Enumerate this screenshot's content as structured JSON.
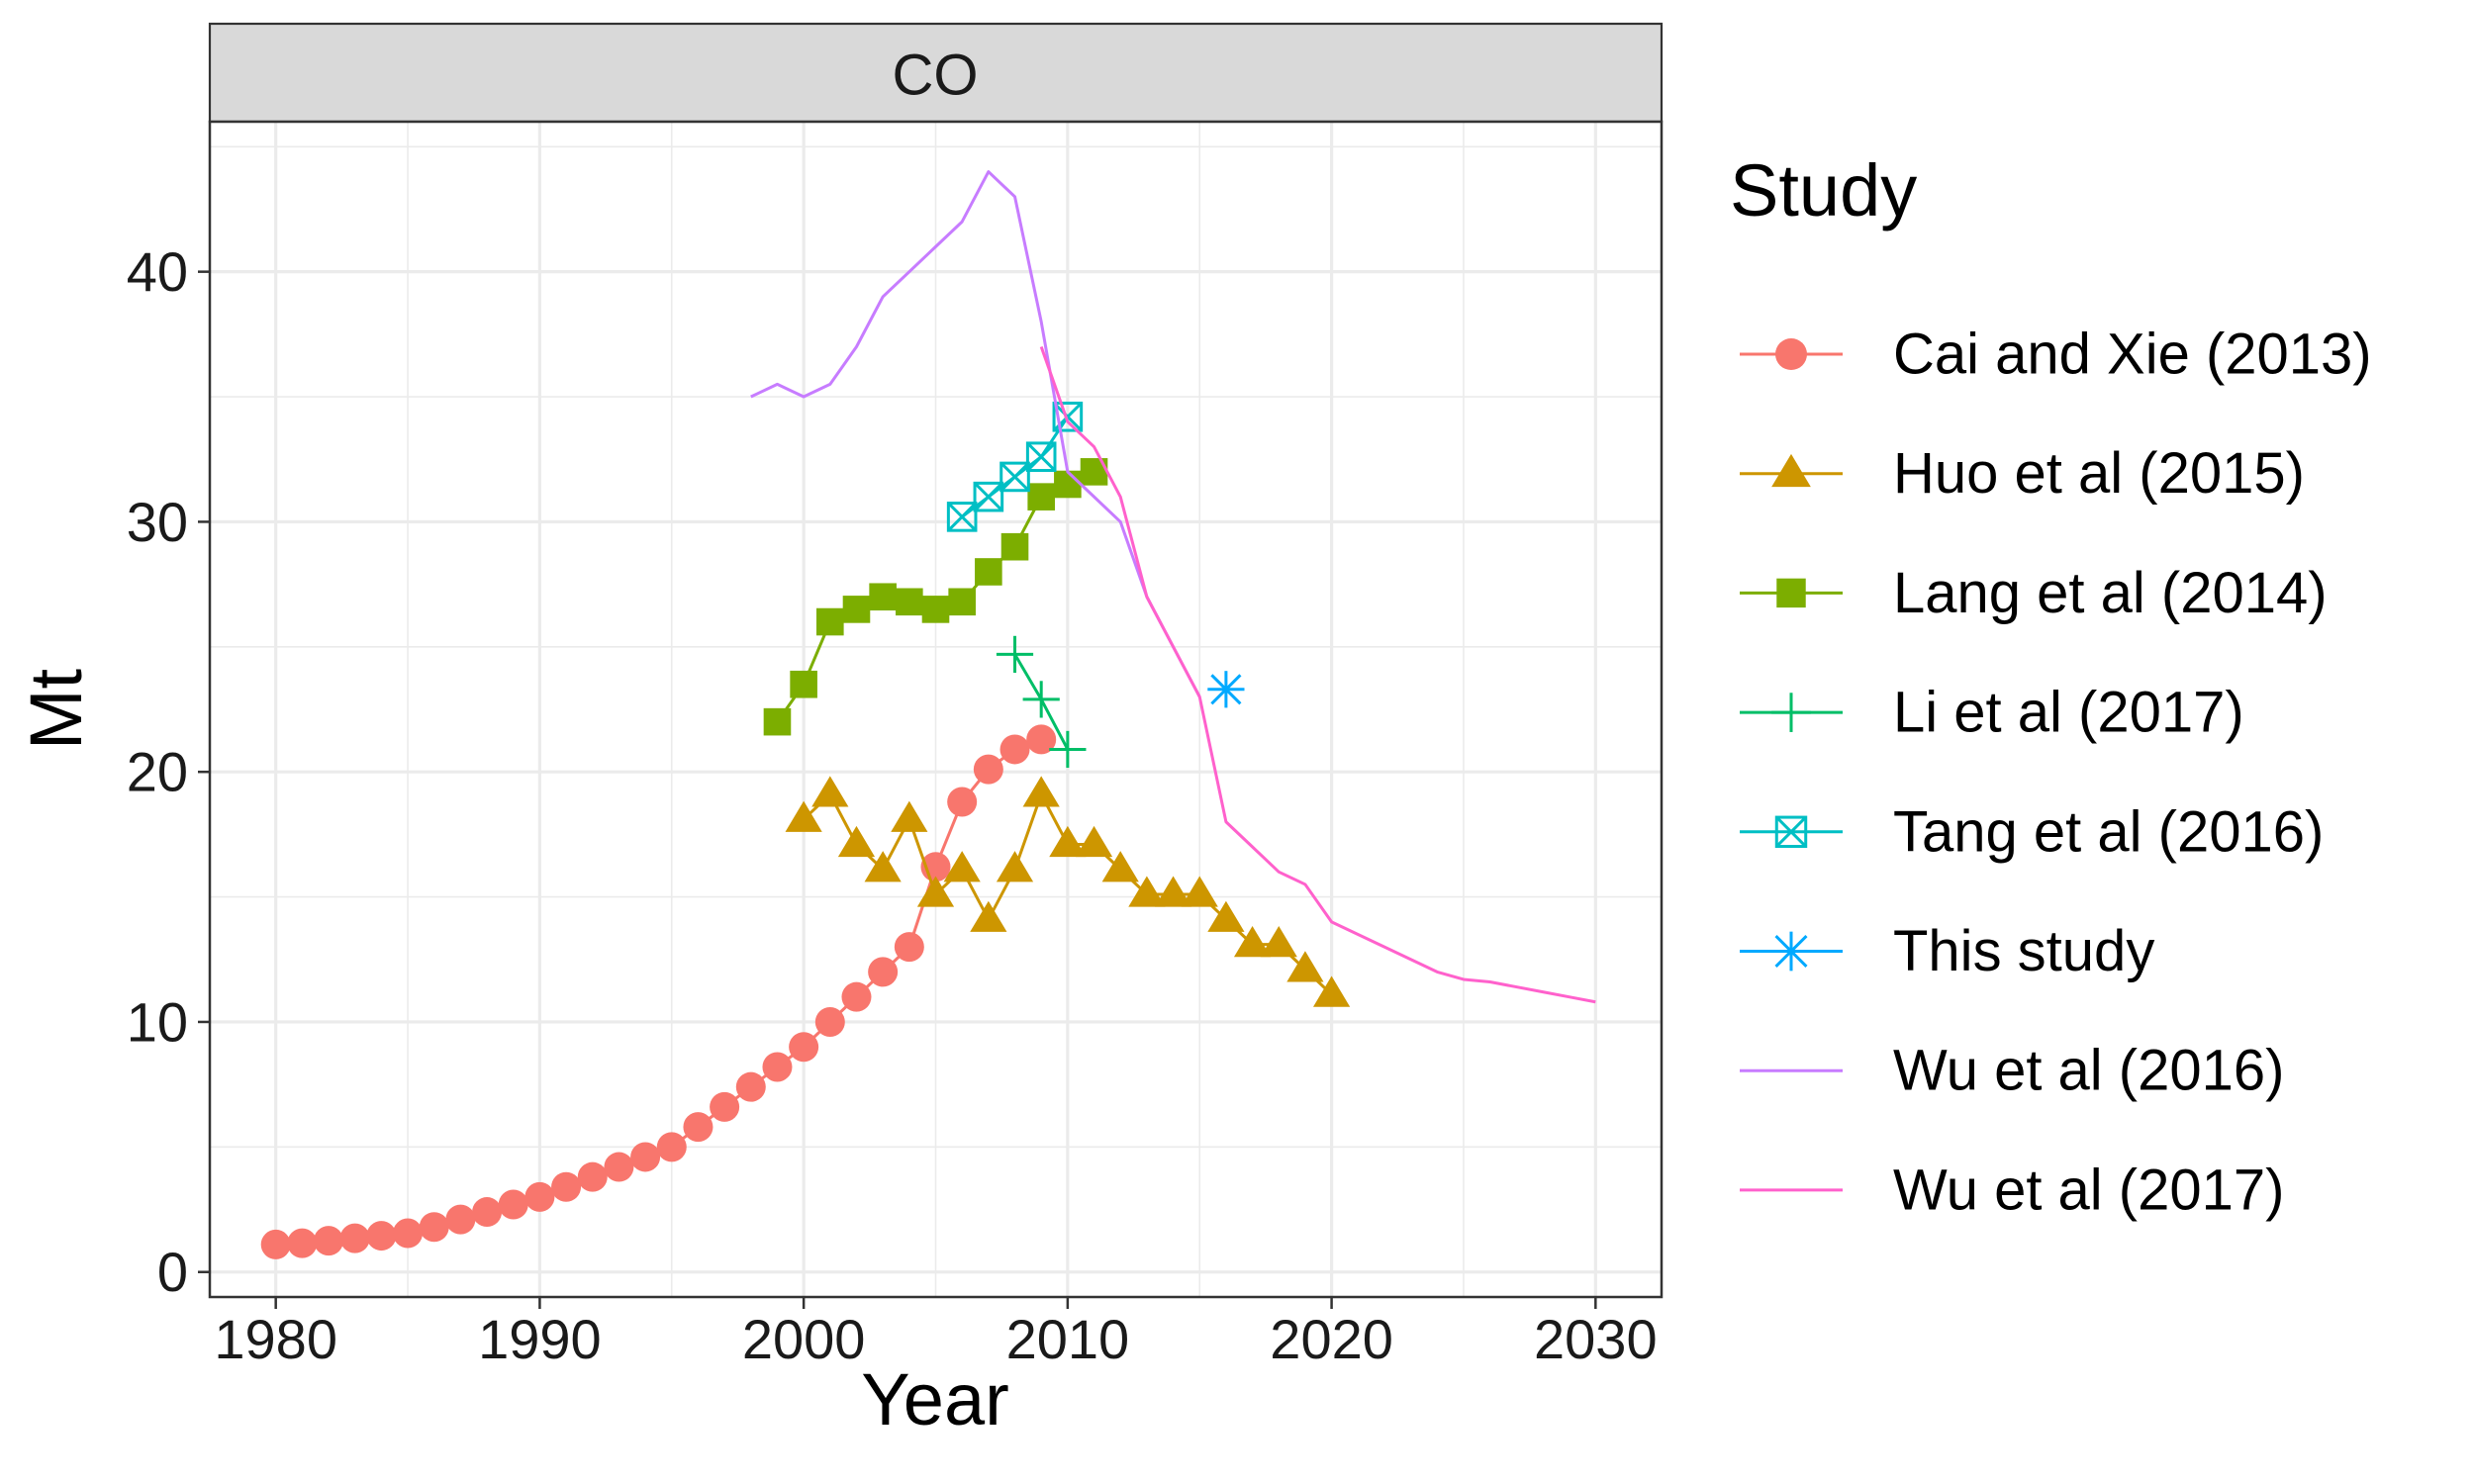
{
  "chart_data": {
    "type": "line",
    "facet_label": "CO",
    "xlabel": "Year",
    "ylabel": "Mt",
    "xlim": [
      1977.5,
      2032.5
    ],
    "ylim": [
      -1,
      46
    ],
    "x_ticks": [
      1980,
      1990,
      2000,
      2010,
      2020,
      2030
    ],
    "y_ticks": [
      0,
      10,
      20,
      30,
      40
    ],
    "grid": true,
    "legend_title": "Study",
    "legend_position": "right",
    "series": [
      {
        "name": "Cai and Xie (2013)",
        "color": "#F8766D",
        "marker": "circle",
        "line": true,
        "x": [
          1980,
          1981,
          1982,
          1983,
          1984,
          1985,
          1986,
          1987,
          1988,
          1989,
          1990,
          1991,
          1992,
          1993,
          1994,
          1995,
          1996,
          1997,
          1998,
          1999,
          2000,
          2001,
          2002,
          2003,
          2004,
          2005,
          2006,
          2007,
          2008,
          2009
        ],
        "y": [
          1.1,
          1.15,
          1.25,
          1.35,
          1.45,
          1.55,
          1.8,
          2.1,
          2.4,
          2.7,
          3.0,
          3.4,
          3.8,
          4.2,
          4.6,
          5.0,
          5.8,
          6.6,
          7.4,
          8.2,
          9.0,
          10.0,
          11.0,
          12.0,
          13.0,
          16.2,
          18.8,
          20.1,
          20.9,
          21.3
        ]
      },
      {
        "name": "Huo et al (2015)",
        "color": "#CD9600",
        "marker": "triangle",
        "line": true,
        "x": [
          2000,
          2001,
          2002,
          2003,
          2004,
          2005,
          2006,
          2007,
          2008,
          2009,
          2010,
          2011,
          2012,
          2013,
          2014,
          2015,
          2016,
          2017,
          2018,
          2019,
          2020
        ],
        "y": [
          18.1,
          19.1,
          17.1,
          16.1,
          18.1,
          15.1,
          16.1,
          14.1,
          16.1,
          19.1,
          17.1,
          17.1,
          16.1,
          15.1,
          15.1,
          15.1,
          14.1,
          13.1,
          13.1,
          12.1,
          11.1
        ]
      },
      {
        "name": "Lang et al (2014)",
        "color": "#7CAE00",
        "marker": "square",
        "line": true,
        "x": [
          1999,
          2000,
          2001,
          2002,
          2003,
          2004,
          2005,
          2006,
          2007,
          2008,
          2009,
          2010,
          2011
        ],
        "y": [
          22.0,
          23.5,
          26.0,
          26.5,
          27.0,
          26.8,
          26.5,
          26.8,
          28.0,
          29.0,
          31.0,
          31.5,
          32.0
        ]
      },
      {
        "name": "Li et al (2017)",
        "color": "#00BE67",
        "marker": "plus",
        "line": true,
        "x": [
          2008,
          2009,
          2010
        ],
        "y": [
          24.7,
          22.9,
          20.9
        ]
      },
      {
        "name": "Tang et al (2016)",
        "color": "#00BFC4",
        "marker": "boxcross",
        "line": true,
        "x": [
          2006,
          2007,
          2008,
          2009,
          2010
        ],
        "y": [
          30.2,
          31.0,
          31.8,
          32.6,
          34.2
        ]
      },
      {
        "name": "This study",
        "color": "#00A9FF",
        "marker": "asterisk",
        "line": false,
        "x": [
          2016
        ],
        "y": [
          23.3
        ]
      },
      {
        "name": "Wu et al (2016)",
        "color": "#C77CFF",
        "marker": "none",
        "line": true,
        "x": [
          1998,
          1999,
          2000,
          2001,
          2002,
          2003,
          2004,
          2005,
          2006,
          2007,
          2008,
          2009,
          2010,
          2011,
          2012,
          2013,
          2014,
          2015
        ],
        "y": [
          35.0,
          35.5,
          35.0,
          35.5,
          37.0,
          39.0,
          40.0,
          41.0,
          42.0,
          44.0,
          43.0,
          38.0,
          32.0,
          31.0,
          30.0,
          27.0,
          25.0,
          23.0
        ]
      },
      {
        "name": "Wu et al (2017)",
        "color": "#FF61CC",
        "marker": "none",
        "line": true,
        "x": [
          2009,
          2010,
          2011,
          2012,
          2013,
          2014,
          2015,
          2016,
          2017,
          2018,
          2019,
          2020,
          2021,
          2022,
          2023,
          2024,
          2025,
          2026,
          2027,
          2028,
          2029,
          2030
        ],
        "y": [
          37.0,
          34.0,
          33.0,
          31.0,
          27.0,
          25.0,
          23.0,
          18.0,
          17.0,
          16.0,
          15.5,
          14.0,
          13.5,
          13.0,
          12.5,
          12.0,
          11.7,
          11.6,
          11.4,
          11.2,
          11.0,
          10.8
        ]
      }
    ]
  }
}
